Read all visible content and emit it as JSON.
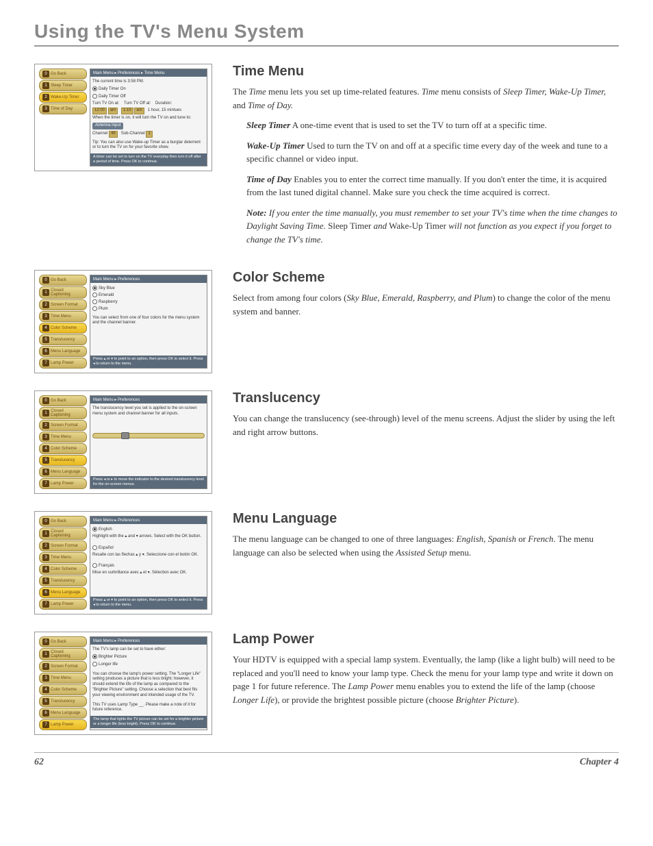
{
  "page": {
    "title": "Using the TV's Menu System",
    "number": "62",
    "chapter": "Chapter 4"
  },
  "shots": {
    "time": {
      "bc": "Main Menu ▸ Preferences ▸ Time Menu",
      "sidebar": [
        {
          "n": "0",
          "l": "Go Back"
        },
        {
          "n": "1",
          "l": "Sleep Timer"
        },
        {
          "n": "2",
          "l": "Wake-Up Timer",
          "sel": true
        },
        {
          "n": "3",
          "l": "Time of Day"
        }
      ],
      "lines": {
        "cur": "The current time is 3:58 PM.",
        "r1": "Daily Timer On",
        "r2": "Daily Timer Off",
        "onat": "Turn TV On at:",
        "offat": "Turn TV Off at:",
        "dur": "Duration:",
        "t1a": "12:00",
        "t1b": "am",
        "t2a": "1:15",
        "t2b": "am",
        "durv": "1 hour, 15 mintues",
        "when": "When the timer is on, it will turn the TV on and tune to:",
        "ant": "Antenna Input",
        "ch": "Channel",
        "chv": "46",
        "sch": "Sub-Channel",
        "schv": "1",
        "tip": "Tip: You can also use Wake-up Timer as a burglar deterrent or to turn the TV on for your favorite show."
      },
      "hint": "A timer can be set to turn on the TV everyday then turn it off after a period of time. Press OK to continue."
    },
    "prefs_sidebar": [
      {
        "n": "0",
        "l": "Go Back"
      },
      {
        "n": "1",
        "l": "Closed Captioning"
      },
      {
        "n": "2",
        "l": "Screen Format"
      },
      {
        "n": "3",
        "l": "Time Menu"
      },
      {
        "n": "4",
        "l": "Color Scheme"
      },
      {
        "n": "5",
        "l": "Translucency"
      },
      {
        "n": "6",
        "l": "Menu Language"
      },
      {
        "n": "7",
        "l": "Lamp Power"
      }
    ],
    "color": {
      "bc": "Main Menu ▸ Preferences",
      "opts": [
        "Sky Blue",
        "Emerald",
        "Raspberry",
        "Plum"
      ],
      "desc": "You can select from one of four colors for the menu system and the channel banner.",
      "hint": "Press ▴ or ▾ to point to an option, then press OK to select it. Press ◂ to return to the menu."
    },
    "trans": {
      "bc": "Main Menu ▸ Preferences",
      "desc": "The translucency level you set is applied to the on-screen menu system and channel banner for all inputs.",
      "hint": "Press ◂ or ▸ to move the indicator to the desired translucency level for the on-screen menus."
    },
    "lang": {
      "bc": "Main Menu ▸ Preferences",
      "en": "English",
      "en_d": "Highlight with the ▴ and ▾ arrows. Select with the OK button.",
      "es": "Español",
      "es_d": "Resalte con las flechas ▴ y ▾. Seleccione con el botón OK.",
      "fr": "Français",
      "fr_d": "Mise en surbrillance avec ▴ et ▾. Sélection avec OK.",
      "hint": "Press ▴ or ▾ to point to an option, then press OK to select it. Press ◂ to return to the menu."
    },
    "lamp": {
      "bc": "Main Menu ▸ Preferences",
      "intro": "The TV's lamp can be set to have either:",
      "o1": "Brighter Picture",
      "o2": "Longer life",
      "desc": "You can choose the lamp's power setting. The \"Longer Life\" setting produces a picture that is less bright; however, it should extend the life of the lamp as compared to the \"Brighter Picture\" setting. Choose a selection that best fits your viewing environment and intended usage of the TV.",
      "type": "This TV uses Lamp Type __. Please make a note of it for future reference.",
      "hint": "The lamp that lights the TV picture can be set for a brighter picture or a longer life (less bright). Press OK to continue."
    }
  },
  "body": {
    "time": {
      "h": "Time Menu",
      "p1a": "The ",
      "p1i1": "Time",
      "p1b": " menu lets you set up time-related features. ",
      "p1i2": "Time",
      "p1c": " menu consists of ",
      "p1i3": "Sleep Timer, Wake-Up Timer,",
      "p1d": " and ",
      "p1i4": "Time of Day.",
      "s1b": "Sleep Timer",
      "s1": "   A one-time event that is used to set the TV to turn off at a specific time.",
      "s2b": "Wake-Up Timer",
      "s2": "   Used to turn the TV on and off at a specific time every day of the week and tune to a specific channel or video input.",
      "s3b": "Time of Day",
      "s3": "   Enables you to enter the correct time manually. If you don't enter the time, it is acquired from the last tuned digital channel. Make sure you check the time acquired is correct.",
      "nb": "Note:",
      "n1": " If you enter the time manually, you must remember to set your TV's time when the time changes to Daylight Saving Time.",
      "n2": " Sleep Timer ",
      "n2i": "and",
      "n3": " Wake-Up Timer ",
      "n4": "will not function as you expect if you forget to change the TV's time."
    },
    "color": {
      "h": "Color Scheme",
      "p1a": "Select from among four colors (",
      "p1i": "Sky Blue, Emerald, Raspberry, and Plum",
      "p1b": ") to change the color of the menu system and banner."
    },
    "trans": {
      "h": "Translucency",
      "p": "You can change the translucency (see-through) level of the menu screens. Adjust the slider by using the left and right arrow buttons."
    },
    "lang": {
      "h": "Menu Language",
      "p1a": "The menu language can be changed to one of three languages: ",
      "p1i1": "English, Spanish",
      "p1b": " or ",
      "p1i2": "French",
      "p1c": ". The menu language can also be selected when using the ",
      "p1i3": "Assisted Setup",
      "p1d": " menu."
    },
    "lamp": {
      "h": "Lamp Power",
      "p1a": "Your HDTV is equipped with a special lamp system. Eventually, the lamp (like a light bulb) will need to be replaced and you'll need to know your lamp type. Check the menu for your lamp type and write it down on page 1 for future reference. The ",
      "p1i1": "Lamp Power",
      "p1b": " menu enables you to extend the life of the lamp (choose ",
      "p1i2": "Longer Life",
      "p1c": "), or provide the brightest possible picture (choose ",
      "p1i3": "Brighter Picture",
      "p1d": ")."
    }
  }
}
